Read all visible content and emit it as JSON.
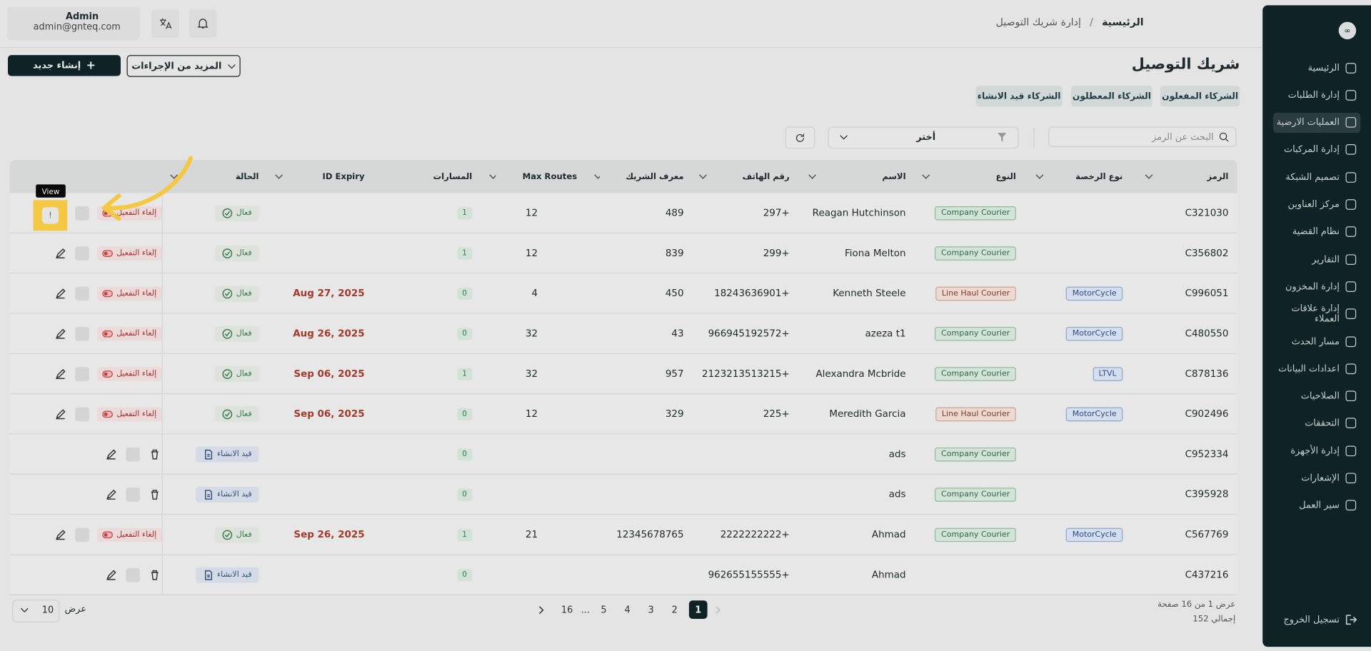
{
  "sidebar": {
    "nav": [
      "الرئيسية",
      "إدارة الطلبات",
      "العمليات الارضية",
      "إدارة المركبات",
      "تصميم الشبكة",
      "مركز العناوين",
      "نظام القضية",
      "التقارير",
      "إدارة المخزون",
      "إدارة علاقات العملاء",
      "مسار الحدث",
      "اعدادات البيانات",
      "الصلاحيات",
      "التحققات",
      "إدارة الأجهزة",
      "الإشعارات",
      "سير العمل"
    ],
    "active": 2,
    "logout": "تسجيل الخروج"
  },
  "header": {
    "user_name": "Admin",
    "user_email": "admin@gnteq.com",
    "breadcrumb": [
      "الرئيسية",
      "/",
      "إدارة شريك التوصيل"
    ]
  },
  "page": {
    "title": "شريك التوصيل",
    "create_button": "إنشاء جديد",
    "more_actions": "المزيد من الإجراءات",
    "tabs": [
      "الشركاء المفعلون",
      "الشركاء المعطلون",
      "الشركاء قيد الانشاء"
    ],
    "search_placeholder": "البحث عن الرمز",
    "filter_select": "أختر"
  },
  "table": {
    "headers": {
      "code": "الرمز",
      "license": "نوع الرخصة",
      "type": "النوع",
      "name": "الاسم",
      "phone": "رقم الهاتف",
      "partner_id": "معرف الشريك",
      "max_routes": "Max Routes",
      "routes": "المسارات",
      "expiry": "ID Expiry",
      "status": "الحالة"
    },
    "rows": [
      {
        "code": "C321030",
        "type": "Company Courier",
        "name": "Reagan Hutchinson",
        "phone": "+297",
        "partner_id": "489",
        "max_routes": 12,
        "routes": 1,
        "status": "فعال",
        "action": "إلغاء التفعيل"
      },
      {
        "code": "C356802",
        "type": "Company Courier",
        "name": "Fiona Melton",
        "phone": "+299",
        "partner_id": "839",
        "max_routes": 12,
        "routes": 1,
        "status": "فعال",
        "action": "إلغاء التفعيل"
      },
      {
        "code": "C996051",
        "license": "MotorCycle",
        "type": "Line Haul Courier",
        "name": "Kenneth Steele",
        "phone": "+18243636901",
        "partner_id": "450",
        "max_routes": 4,
        "routes": 0,
        "expiry": "Aug 27, 2025",
        "status": "فعال",
        "action": "إلغاء التفعيل"
      },
      {
        "code": "C480550",
        "license": "MotorCycle",
        "type": "Company Courier",
        "name": "azeza t1",
        "phone": "+966945192572",
        "partner_id": "43",
        "max_routes": 32,
        "routes": 0,
        "expiry": "Aug 26, 2025",
        "status": "فعال",
        "action": "إلغاء التفعيل"
      },
      {
        "code": "C878136",
        "license": "LTVL",
        "type": "Company Courier",
        "name": "Alexandra Mcbride",
        "phone": "+2123213513215",
        "partner_id": "957",
        "max_routes": 32,
        "routes": 1,
        "expiry": "Sep 06, 2025",
        "status": "فعال",
        "action": "إلغاء التفعيل"
      },
      {
        "code": "C902496",
        "license": "MotorCycle",
        "type": "Line Haul Courier",
        "name": "Meredith Garcia",
        "phone": "+225",
        "partner_id": "329",
        "max_routes": 12,
        "routes": 0,
        "expiry": "Sep 06, 2025",
        "status": "فعال",
        "action": "إلغاء التفعيل"
      },
      {
        "code": "C952334",
        "type": "Company Courier",
        "name": "ads",
        "routes": 0,
        "status": "قيد الانشاء"
      },
      {
        "code": "C395928",
        "type": "Company Courier",
        "name": "ads",
        "routes": 0,
        "status": "قيد الانشاء"
      },
      {
        "code": "C567769",
        "license": "MotorCycle",
        "type": "Company Courier",
        "name": "Ahmad",
        "phone": "+2222222222",
        "partner_id": "12345678765",
        "max_routes": 21,
        "routes": 1,
        "expiry": "Sep 26, 2025",
        "status": "فعال",
        "action": "إلغاء التفعيل"
      },
      {
        "code": "C437216",
        "name": "Ahmad",
        "phone": "+962655155555",
        "routes": 0,
        "status": "قيد الانشاء"
      }
    ]
  },
  "pagination": {
    "summary": "عرض 1 من 16 صفحة",
    "total": "إجمالي 152",
    "pages": [
      "1",
      "2",
      "3",
      "4",
      "5",
      "...",
      "16"
    ],
    "current": 0,
    "per_page_label": "عرض",
    "per_page": "10"
  },
  "tooltip": "View"
}
